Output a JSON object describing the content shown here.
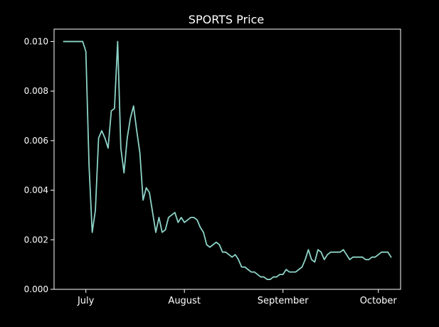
{
  "chart_data": {
    "type": "line",
    "title": "SPORTS Price",
    "xlabel": "",
    "ylabel": "",
    "x_ticks": [
      "July",
      "August",
      "September",
      "October"
    ],
    "y_ticks": [
      "0.000",
      "0.002",
      "0.004",
      "0.006",
      "0.008",
      "0.010"
    ],
    "ylim": [
      0,
      0.0105
    ],
    "xlim": [
      "2023-06-21",
      "2023-10-08"
    ],
    "grid": false,
    "legend": "none",
    "colors": {
      "background": "#000000",
      "axes": "#ffffff",
      "text": "#ffffff",
      "line": "#8dd3c7"
    },
    "series": [
      {
        "x": [
          "2023-06-24",
          "2023-06-26",
          "2023-06-28",
          "2023-06-30",
          "2023-07-01",
          "2023-07-02",
          "2023-07-03",
          "2023-07-04",
          "2023-07-05",
          "2023-07-06",
          "2023-07-07",
          "2023-07-08",
          "2023-07-09",
          "2023-07-10",
          "2023-07-11",
          "2023-07-12",
          "2023-07-13",
          "2023-07-14",
          "2023-07-15",
          "2023-07-16",
          "2023-07-17",
          "2023-07-18",
          "2023-07-19",
          "2023-07-20",
          "2023-07-21",
          "2023-07-22",
          "2023-07-23",
          "2023-07-24",
          "2023-07-25",
          "2023-07-26",
          "2023-07-27",
          "2023-07-28",
          "2023-07-29",
          "2023-07-30",
          "2023-07-31",
          "2023-08-01",
          "2023-08-02",
          "2023-08-03",
          "2023-08-04",
          "2023-08-05",
          "2023-08-06",
          "2023-08-07",
          "2023-08-08",
          "2023-08-09",
          "2023-08-10",
          "2023-08-11",
          "2023-08-12",
          "2023-08-13",
          "2023-08-14",
          "2023-08-15",
          "2023-08-16",
          "2023-08-17",
          "2023-08-18",
          "2023-08-19",
          "2023-08-20",
          "2023-08-21",
          "2023-08-22",
          "2023-08-23",
          "2023-08-24",
          "2023-08-25",
          "2023-08-26",
          "2023-08-27",
          "2023-08-28",
          "2023-08-29",
          "2023-08-30",
          "2023-08-31",
          "2023-09-01",
          "2023-09-02",
          "2023-09-03",
          "2023-09-04",
          "2023-09-05",
          "2023-09-06",
          "2023-09-07",
          "2023-09-08",
          "2023-09-09",
          "2023-09-10",
          "2023-09-11",
          "2023-09-12",
          "2023-09-13",
          "2023-09-14",
          "2023-09-15",
          "2023-09-16",
          "2023-09-17",
          "2023-09-18",
          "2023-09-19",
          "2023-09-20",
          "2023-09-21",
          "2023-09-22",
          "2023-09-23",
          "2023-09-24",
          "2023-09-25",
          "2023-09-26",
          "2023-09-27",
          "2023-09-28",
          "2023-09-29",
          "2023-09-30",
          "2023-10-01",
          "2023-10-02",
          "2023-10-03",
          "2023-10-04",
          "2023-10-05"
        ],
        "values": [
          0.01,
          0.01,
          0.01,
          0.01,
          0.0096,
          0.005,
          0.0023,
          0.0032,
          0.0061,
          0.0064,
          0.0061,
          0.0057,
          0.0072,
          0.0073,
          0.01,
          0.0057,
          0.0047,
          0.0061,
          0.0069,
          0.0074,
          0.0064,
          0.0055,
          0.0036,
          0.0041,
          0.0039,
          0.0031,
          0.0023,
          0.0029,
          0.0023,
          0.0024,
          0.0029,
          0.003,
          0.0031,
          0.0027,
          0.0029,
          0.0027,
          0.0028,
          0.0029,
          0.0029,
          0.0028,
          0.0025,
          0.0023,
          0.0018,
          0.0017,
          0.0018,
          0.0019,
          0.0018,
          0.0015,
          0.0015,
          0.0014,
          0.0013,
          0.0014,
          0.0012,
          0.0009,
          0.0009,
          0.0008,
          0.0007,
          0.0007,
          0.0006,
          0.0005,
          0.0005,
          0.0004,
          0.0004,
          0.0005,
          0.0005,
          0.0006,
          0.0006,
          0.0008,
          0.0007,
          0.0007,
          0.0007,
          0.0008,
          0.0009,
          0.0012,
          0.0016,
          0.0012,
          0.0011,
          0.0016,
          0.0015,
          0.0012,
          0.0014,
          0.0015,
          0.0015,
          0.0015,
          0.0015,
          0.0016,
          0.0014,
          0.0012,
          0.0013,
          0.0013,
          0.0013,
          0.0013,
          0.0012,
          0.0012,
          0.0013,
          0.0013,
          0.0014,
          0.0015,
          0.0015,
          0.0015,
          0.0013
        ]
      }
    ]
  }
}
